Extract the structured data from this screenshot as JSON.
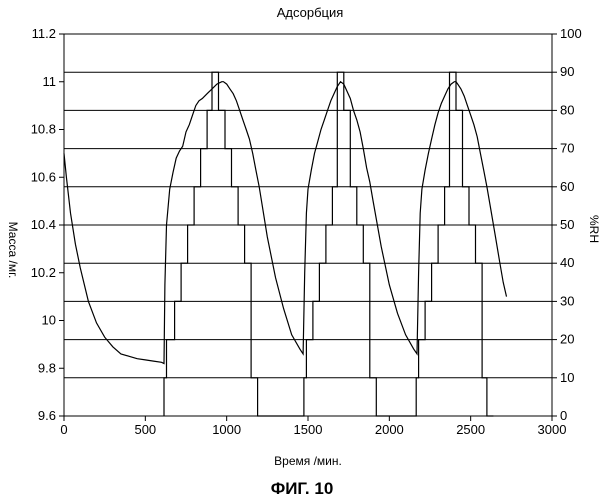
{
  "chart_data": {
    "type": "line",
    "title": "Адсорбция",
    "caption": "ФИГ. 10",
    "xlabel": "Время /мин.",
    "ylabel": "Масса /мг.",
    "y2label": "%RH",
    "xlim": [
      0,
      3000
    ],
    "ylim": [
      9.6,
      11.2
    ],
    "y2lim": [
      0,
      100
    ],
    "xticks": [
      "0",
      "500",
      "1000",
      "1500",
      "2000",
      "2500",
      "3000"
    ],
    "yticks": [
      "9.6",
      "9.8",
      "10",
      "10.2",
      "10.4",
      "10.6",
      "10.8",
      "11",
      "11.2"
    ],
    "y2ticks": [
      "0",
      "10",
      "20",
      "30",
      "40",
      "50",
      "60",
      "70",
      "80",
      "90",
      "100"
    ],
    "grid": "horizontal",
    "series": [
      {
        "axis": "left",
        "x": [
          0,
          15,
          40,
          70,
          100,
          150,
          200,
          250,
          300,
          350,
          400,
          450,
          500,
          550,
          600,
          615,
          620,
          630,
          650,
          670,
          690,
          710,
          730,
          750,
          770,
          790,
          810,
          830,
          850,
          880,
          910,
          940,
          970,
          980,
          1000,
          1020,
          1040,
          1060,
          1080,
          1100,
          1120,
          1140,
          1160,
          1180,
          1200,
          1250,
          1300,
          1350,
          1400,
          1450,
          1470,
          1480,
          1490,
          1500,
          1520,
          1540,
          1560,
          1580,
          1600,
          1620,
          1640,
          1660,
          1680,
          1700,
          1720,
          1740,
          1760,
          1780,
          1800,
          1820,
          1840,
          1860,
          1880,
          1900,
          1950,
          2000,
          2050,
          2100,
          2150,
          2170,
          2180,
          2190,
          2200,
          2220,
          2240,
          2260,
          2280,
          2300,
          2320,
          2340,
          2360,
          2380,
          2400,
          2410,
          2420,
          2440,
          2460,
          2480,
          2500,
          2520,
          2540,
          2560,
          2580,
          2600,
          2620,
          2650,
          2680,
          2700,
          2720
        ],
        "values": [
          10.7,
          10.6,
          10.45,
          10.32,
          10.22,
          10.08,
          9.99,
          9.93,
          9.89,
          9.86,
          9.85,
          9.84,
          9.835,
          9.83,
          9.825,
          9.82,
          10.15,
          10.4,
          10.55,
          10.62,
          10.68,
          10.71,
          10.73,
          10.79,
          10.82,
          10.86,
          10.9,
          10.92,
          10.93,
          10.95,
          10.97,
          10.99,
          11.0,
          11.0,
          10.99,
          10.97,
          10.95,
          10.92,
          10.88,
          10.84,
          10.8,
          10.76,
          10.7,
          10.63,
          10.56,
          10.35,
          10.18,
          10.05,
          9.94,
          9.88,
          9.86,
          10.2,
          10.45,
          10.55,
          10.63,
          10.7,
          10.75,
          10.8,
          10.84,
          10.88,
          10.92,
          10.95,
          10.98,
          11.0,
          10.99,
          10.96,
          10.93,
          10.88,
          10.84,
          10.79,
          10.72,
          10.64,
          10.58,
          10.5,
          10.31,
          10.15,
          10.03,
          9.94,
          9.88,
          9.86,
          10.2,
          10.45,
          10.55,
          10.63,
          10.7,
          10.76,
          10.82,
          10.87,
          10.91,
          10.94,
          10.97,
          10.99,
          11.0,
          11.0,
          10.99,
          10.97,
          10.94,
          10.9,
          10.86,
          10.82,
          10.77,
          10.7,
          10.63,
          10.56,
          10.48,
          10.36,
          10.24,
          10.16,
          10.1
        ]
      },
      {
        "axis": "right",
        "x": [
          615,
          615,
          630,
          630,
          680,
          680,
          720,
          720,
          760,
          760,
          800,
          800,
          840,
          840,
          880,
          880,
          910,
          910,
          950,
          950,
          990,
          990,
          1030,
          1030,
          1070,
          1070,
          1110,
          1110,
          1150,
          1150,
          1190,
          1190,
          1230,
          1475,
          1475,
          1490,
          1490,
          1530,
          1530,
          1570,
          1570,
          1610,
          1610,
          1650,
          1650,
          1680,
          1680,
          1720,
          1720,
          1760,
          1760,
          1800,
          1800,
          1840,
          1840,
          1880,
          1880,
          1920,
          1920,
          1960,
          2165,
          2165,
          2180,
          2180,
          2220,
          2220,
          2260,
          2260,
          2300,
          2300,
          2340,
          2340,
          2370,
          2370,
          2410,
          2410,
          2450,
          2450,
          2490,
          2490,
          2530,
          2530,
          2570,
          2570,
          2600,
          2600,
          2640
        ],
        "values": [
          0,
          10,
          10,
          20,
          20,
          30,
          30,
          40,
          40,
          50,
          50,
          60,
          60,
          70,
          70,
          80,
          80,
          90,
          90,
          80,
          80,
          70,
          70,
          60,
          60,
          50,
          50,
          40,
          40,
          10,
          10,
          0,
          0,
          0,
          10,
          10,
          20,
          20,
          30,
          30,
          40,
          40,
          50,
          50,
          60,
          60,
          90,
          90,
          80,
          80,
          60,
          60,
          50,
          50,
          40,
          40,
          10,
          10,
          0,
          0,
          0,
          10,
          10,
          20,
          20,
          30,
          30,
          40,
          40,
          50,
          50,
          60,
          60,
          90,
          90,
          80,
          80,
          60,
          60,
          50,
          50,
          40,
          40,
          10,
          10,
          0,
          0
        ]
      }
    ]
  }
}
